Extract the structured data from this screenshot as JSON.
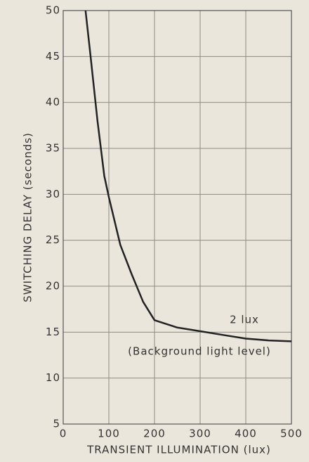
{
  "chart_data": {
    "type": "line",
    "xlabel": "TRANSIENT ILLUMINATION (lux)",
    "ylabel": "SWITCHING DELAY (seconds)",
    "annotations": [
      "2 lux",
      "(Background light level)"
    ],
    "x": [
      49,
      60,
      75,
      90,
      100,
      125,
      150,
      175,
      200,
      250,
      300,
      350,
      400,
      450,
      500
    ],
    "values": [
      50,
      45,
      38,
      32,
      29.7,
      24.5,
      21.3,
      18.3,
      16.3,
      15.5,
      15.1,
      14.7,
      14.3,
      14.1,
      14
    ],
    "color": "#222222",
    "xlim": [
      0,
      500
    ],
    "xticks": [
      0,
      100,
      200,
      300,
      400,
      500
    ],
    "ylim": [
      5,
      50
    ],
    "yticks": [
      5,
      10,
      15,
      20,
      25,
      30,
      35,
      40,
      45,
      50
    ],
    "grid": true
  }
}
